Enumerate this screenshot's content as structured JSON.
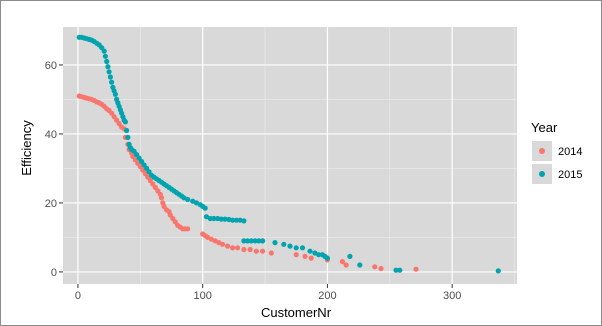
{
  "chart_data": {
    "type": "scatter",
    "title": "",
    "xlabel": "CustomerNr",
    "ylabel": "Efficiency",
    "xlim": [
      -12,
      352
    ],
    "ylim": [
      -3.5,
      71
    ],
    "x_ticks": [
      0,
      100,
      200,
      300
    ],
    "y_ticks": [
      0,
      20,
      40,
      60
    ],
    "grid": true,
    "legend": {
      "title": "Year",
      "position": "right"
    },
    "series": [
      {
        "name": "2014",
        "color": "#f8766d",
        "points": [
          [
            1,
            51
          ],
          [
            3,
            50.8
          ],
          [
            5,
            50.6
          ],
          [
            7,
            50.4
          ],
          [
            9,
            50.2
          ],
          [
            11,
            50
          ],
          [
            13,
            49.7
          ],
          [
            15,
            49.3
          ],
          [
            17,
            49
          ],
          [
            19,
            48.6
          ],
          [
            21,
            48
          ],
          [
            23,
            47.3
          ],
          [
            25,
            46.8
          ],
          [
            27,
            46
          ],
          [
            29,
            45
          ],
          [
            31,
            44
          ],
          [
            33,
            43
          ],
          [
            35,
            42
          ],
          [
            37,
            41.5
          ],
          [
            38,
            39
          ],
          [
            40,
            37
          ],
          [
            41,
            35.5
          ],
          [
            43,
            34.5
          ],
          [
            44,
            33.5
          ],
          [
            46,
            32.5
          ],
          [
            48,
            31.5
          ],
          [
            50,
            30.5
          ],
          [
            52,
            29.5
          ],
          [
            54,
            28.5
          ],
          [
            56,
            27.5
          ],
          [
            58,
            26.5
          ],
          [
            60,
            25.5
          ],
          [
            62,
            24.5
          ],
          [
            64,
            23.5
          ],
          [
            66,
            22.5
          ],
          [
            67,
            21.5
          ],
          [
            68,
            20
          ],
          [
            69,
            19
          ],
          [
            71,
            18
          ],
          [
            73,
            17.5
          ],
          [
            74,
            16.5
          ],
          [
            76,
            15.5
          ],
          [
            78,
            14.5
          ],
          [
            80,
            13.5
          ],
          [
            82,
            13
          ],
          [
            84,
            12.5
          ],
          [
            86,
            12.5
          ],
          [
            88,
            12.5
          ],
          [
            100,
            11
          ],
          [
            102,
            10.5
          ],
          [
            104,
            10
          ],
          [
            107,
            9.5
          ],
          [
            110,
            9
          ],
          [
            113,
            8.5
          ],
          [
            116,
            8
          ],
          [
            120,
            7.5
          ],
          [
            124,
            7
          ],
          [
            128,
            7
          ],
          [
            133,
            6.5
          ],
          [
            138,
            6.5
          ],
          [
            143,
            6
          ],
          [
            148,
            6
          ],
          [
            155,
            5.5
          ],
          [
            175,
            5
          ],
          [
            182,
            4.5
          ],
          [
            187,
            4
          ],
          [
            200,
            3.5
          ],
          [
            212,
            3
          ],
          [
            215,
            2
          ],
          [
            238,
            1.5
          ],
          [
            243,
            1
          ],
          [
            271,
            0.8
          ]
        ]
      },
      {
        "name": "2015",
        "color": "#00a4ae",
        "points": [
          [
            1,
            68
          ],
          [
            3,
            68
          ],
          [
            5,
            67.8
          ],
          [
            7,
            67.6
          ],
          [
            9,
            67.4
          ],
          [
            11,
            67.2
          ],
          [
            13,
            66.8
          ],
          [
            15,
            66.3
          ],
          [
            17,
            65.8
          ],
          [
            19,
            65
          ],
          [
            21,
            64
          ],
          [
            22,
            62.5
          ],
          [
            23,
            61
          ],
          [
            24,
            59.5
          ],
          [
            25,
            58
          ],
          [
            26,
            56.5
          ],
          [
            27,
            55
          ],
          [
            28,
            53.5
          ],
          [
            29,
            52.5
          ],
          [
            30,
            51.5
          ],
          [
            31,
            50
          ],
          [
            32,
            49
          ],
          [
            33,
            48
          ],
          [
            34,
            47
          ],
          [
            35,
            46
          ],
          [
            36,
            45
          ],
          [
            37,
            44
          ],
          [
            38,
            43.5
          ],
          [
            39,
            41
          ],
          [
            40,
            39
          ],
          [
            41,
            37
          ],
          [
            42,
            36
          ],
          [
            43,
            35.5
          ],
          [
            45,
            35
          ],
          [
            47,
            34
          ],
          [
            49,
            33
          ],
          [
            51,
            32
          ],
          [
            53,
            31
          ],
          [
            55,
            30
          ],
          [
            57,
            29
          ],
          [
            59,
            28
          ],
          [
            61,
            27.5
          ],
          [
            63,
            27
          ],
          [
            65,
            26.5
          ],
          [
            67,
            26
          ],
          [
            69,
            25.5
          ],
          [
            71,
            25
          ],
          [
            73,
            24.5
          ],
          [
            75,
            24
          ],
          [
            77,
            23.5
          ],
          [
            79,
            23
          ],
          [
            81,
            22.5
          ],
          [
            83,
            22
          ],
          [
            85,
            21.5
          ],
          [
            88,
            21
          ],
          [
            92,
            20.5
          ],
          [
            95,
            20
          ],
          [
            98,
            19.5
          ],
          [
            100,
            19
          ],
          [
            102,
            18.5
          ],
          [
            103,
            16
          ],
          [
            106,
            15.5
          ],
          [
            109,
            15.5
          ],
          [
            112,
            15.5
          ],
          [
            115,
            15.3
          ],
          [
            118,
            15.3
          ],
          [
            121,
            15.2
          ],
          [
            124,
            15
          ],
          [
            127,
            15
          ],
          [
            130,
            15
          ],
          [
            133,
            14.8
          ],
          [
            133,
            9
          ],
          [
            136,
            9
          ],
          [
            139,
            9
          ],
          [
            142,
            9
          ],
          [
            145,
            9
          ],
          [
            148,
            9
          ],
          [
            158,
            8.5
          ],
          [
            165,
            8
          ],
          [
            170,
            7.5
          ],
          [
            175,
            7
          ],
          [
            180,
            7
          ],
          [
            186,
            6
          ],
          [
            190,
            5.5
          ],
          [
            193,
            5
          ],
          [
            196,
            5
          ],
          [
            198,
            4.5
          ],
          [
            200,
            4
          ],
          [
            218,
            4.5
          ],
          [
            226,
            2
          ],
          [
            255,
            0.5
          ],
          [
            258,
            0.5
          ],
          [
            337,
            0.3
          ]
        ]
      }
    ]
  }
}
